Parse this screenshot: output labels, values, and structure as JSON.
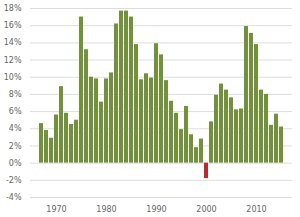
{
  "chart_data": {
    "type": "bar",
    "categories": [
      null,
      null,
      null,
      "1970",
      null,
      null,
      null,
      null,
      null,
      null,
      null,
      null,
      null,
      "1980",
      null,
      null,
      null,
      null,
      null,
      null,
      null,
      null,
      null,
      "1990",
      null,
      null,
      null,
      null,
      null,
      null,
      null,
      null,
      null,
      "2000",
      null,
      null,
      null,
      null,
      null,
      null,
      null,
      null,
      null,
      "2010",
      null,
      null,
      null,
      null,
      null
    ],
    "values": [
      4.6,
      3.8,
      2.9,
      5.6,
      8.9,
      5.8,
      4.5,
      5.0,
      17.0,
      13.2,
      10.0,
      9.8,
      7.1,
      9.8,
      10.5,
      16.2,
      17.7,
      17.7,
      17.0,
      13.8,
      9.7,
      10.4,
      9.9,
      13.9,
      12.6,
      9.6,
      7.2,
      5.8,
      3.9,
      6.6,
      3.3,
      1.8,
      2.8,
      -1.8,
      4.8,
      7.9,
      9.2,
      8.5,
      7.6,
      6.2,
      6.3,
      15.9,
      15.1,
      13.8,
      8.5,
      8.0,
      4.4,
      5.7,
      4.2
    ],
    "colors": [
      "#71913a",
      "#71913a",
      "#71913a",
      "#71913a",
      "#71913a",
      "#71913a",
      "#71913a",
      "#71913a",
      "#71913a",
      "#71913a",
      "#71913a",
      "#71913a",
      "#71913a",
      "#71913a",
      "#71913a",
      "#71913a",
      "#71913a",
      "#71913a",
      "#71913a",
      "#71913a",
      "#71913a",
      "#71913a",
      "#71913a",
      "#71913a",
      "#71913a",
      "#71913a",
      "#71913a",
      "#71913a",
      "#71913a",
      "#71913a",
      "#71913a",
      "#71913a",
      "#71913a",
      "#c0282d",
      "#71913a",
      "#71913a",
      "#71913a",
      "#71913a",
      "#71913a",
      "#71913a",
      "#71913a",
      "#71913a",
      "#71913a",
      "#71913a",
      "#71913a",
      "#71913a",
      "#71913a",
      "#71913a",
      "#71913a"
    ],
    "ylim": [
      -4,
      18
    ],
    "yticks": [
      {
        "value": -4,
        "label": "-4%"
      },
      {
        "value": -2,
        "label": "-2%"
      },
      {
        "value": 0,
        "label": "0%"
      },
      {
        "value": 2,
        "label": "2%"
      },
      {
        "value": 4,
        "label": "4%"
      },
      {
        "value": 6,
        "label": "6%"
      },
      {
        "value": 8,
        "label": "8%"
      },
      {
        "value": 10,
        "label": "10%"
      },
      {
        "value": 12,
        "label": "12%"
      },
      {
        "value": 14,
        "label": "14%"
      },
      {
        "value": 16,
        "label": "16%"
      },
      {
        "value": 18,
        "label": "18%"
      }
    ],
    "grid": true
  }
}
